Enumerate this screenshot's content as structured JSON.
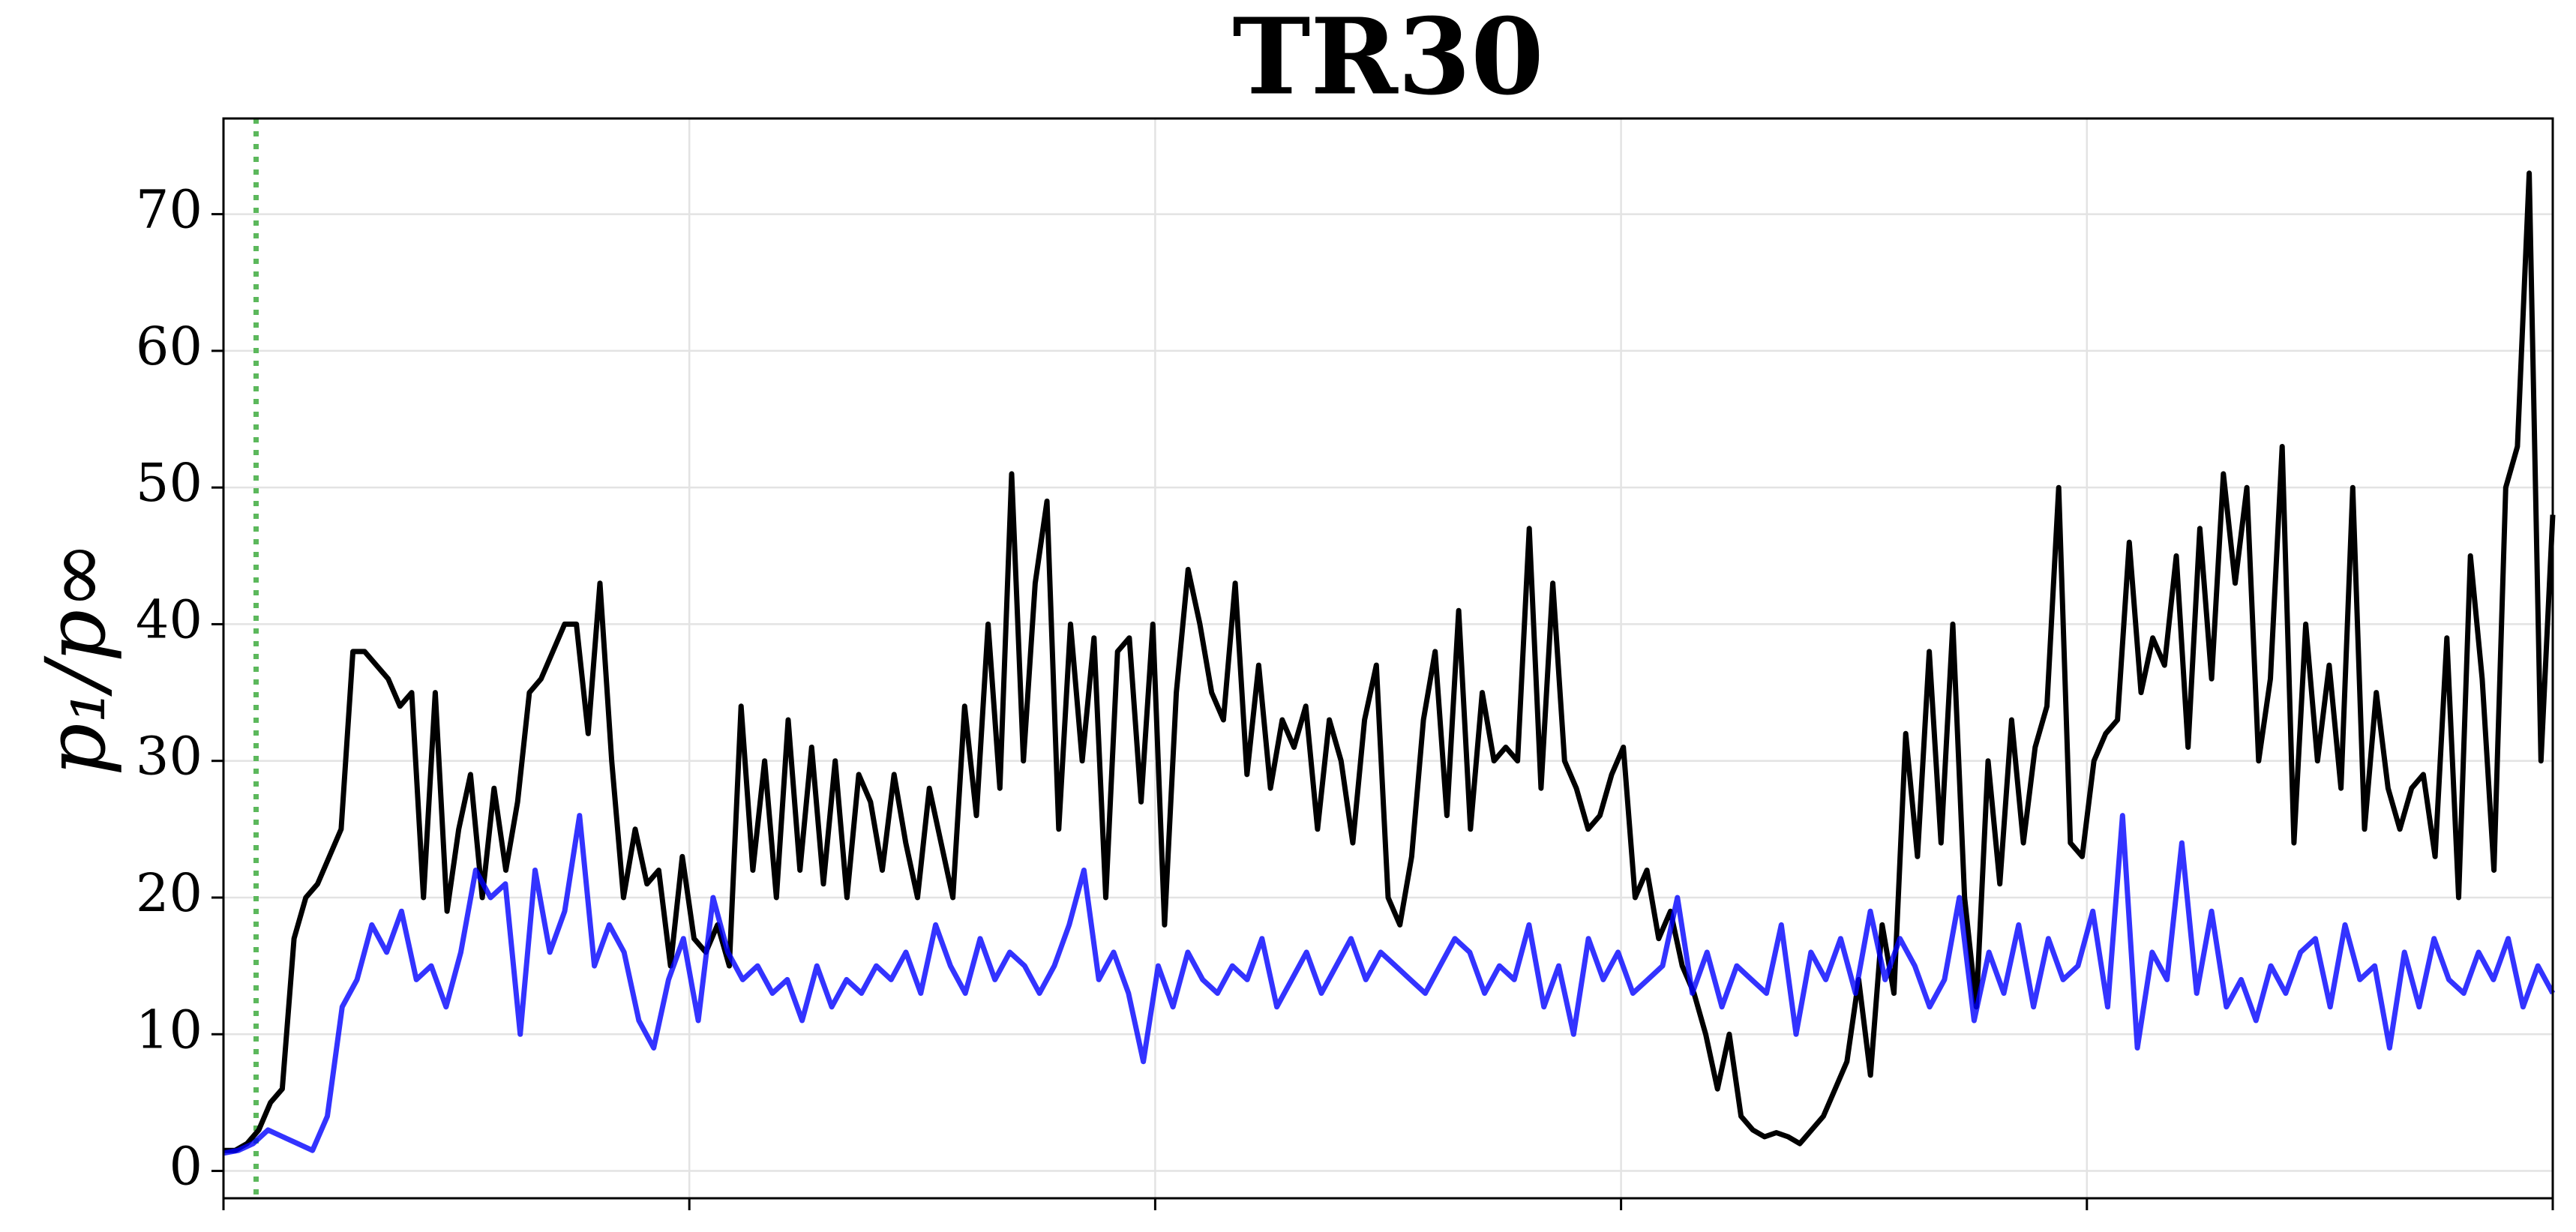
{
  "chart_data": {
    "type": "line",
    "title": "TR30",
    "ylabel": "p₁/p∞",
    "ylim": [
      -2,
      77
    ],
    "yticks": [
      0,
      10,
      20,
      30,
      40,
      50,
      60,
      70
    ],
    "grid": true,
    "series": [
      {
        "color": "#000000",
        "values": [
          1.5,
          1.5,
          2,
          3,
          5,
          6,
          17,
          20,
          21,
          23,
          25,
          38,
          38,
          37,
          36,
          34,
          35,
          20,
          35,
          19,
          25,
          29,
          20,
          28,
          22,
          27,
          35,
          36,
          38,
          40,
          40,
          32,
          43,
          30,
          20,
          25,
          21,
          22,
          15,
          23,
          17,
          16,
          18,
          15,
          34,
          22,
          30,
          20,
          33,
          22,
          31,
          21,
          30,
          20,
          29,
          27,
          22,
          29,
          24,
          20,
          28,
          24,
          20,
          34,
          26,
          40,
          28,
          51,
          30,
          43,
          49,
          25,
          40,
          30,
          39,
          20,
          38,
          39,
          27,
          40,
          18,
          35,
          44,
          40,
          35,
          33,
          43,
          29,
          37,
          28,
          33,
          31,
          34,
          25,
          33,
          30,
          24,
          33,
          37,
          20,
          18,
          23,
          33,
          38,
          26,
          41,
          25,
          35,
          30,
          31,
          30,
          47,
          28,
          43,
          30,
          28,
          25,
          26,
          29,
          31,
          20,
          22,
          17,
          19,
          15,
          13,
          10,
          6,
          10,
          4,
          3,
          2.5,
          2.8,
          2.5,
          2,
          3,
          4,
          6,
          8,
          14,
          7,
          18,
          13,
          32,
          23,
          38,
          24,
          40,
          20,
          12,
          30,
          21,
          33,
          24,
          31,
          34,
          50,
          24,
          23,
          30,
          32,
          33,
          46,
          35,
          39,
          37,
          45,
          31,
          47,
          36,
          51,
          43,
          50,
          30,
          36,
          53,
          24,
          40,
          30,
          37,
          28,
          50,
          25,
          35,
          28,
          25,
          28,
          29,
          23,
          39,
          20,
          45,
          36,
          22,
          50,
          53,
          73,
          30,
          48
        ]
      },
      {
        "color": "#0000ff",
        "values": [
          1.3,
          1.5,
          2,
          3,
          2.5,
          2,
          1.5,
          4,
          12,
          14,
          18,
          16,
          19,
          14,
          15,
          12,
          16,
          22,
          20,
          21,
          10,
          22,
          16,
          19,
          26,
          15,
          18,
          16,
          11,
          9,
          14,
          17,
          11,
          20,
          16,
          14,
          15,
          13,
          14,
          11,
          15,
          12,
          14,
          13,
          15,
          14,
          16,
          13,
          18,
          15,
          13,
          17,
          14,
          16,
          15,
          13,
          15,
          18,
          22,
          14,
          16,
          13,
          8,
          15,
          12,
          16,
          14,
          13,
          15,
          14,
          17,
          12,
          14,
          16,
          13,
          15,
          17,
          14,
          16,
          15,
          14,
          13,
          15,
          17,
          16,
          13,
          15,
          14,
          18,
          12,
          15,
          10,
          17,
          14,
          16,
          13,
          14,
          15,
          20,
          13,
          16,
          12,
          15,
          14,
          13,
          18,
          10,
          16,
          14,
          17,
          13,
          19,
          14,
          17,
          15,
          12,
          14,
          20,
          11,
          16,
          13,
          18,
          12,
          17,
          14,
          15,
          19,
          12,
          26,
          9,
          16,
          14,
          24,
          13,
          19,
          12,
          14,
          11,
          15,
          13,
          16,
          17,
          12,
          18,
          14,
          15,
          9,
          16,
          12,
          17,
          14,
          13,
          16,
          14,
          17,
          12,
          15,
          13
        ]
      }
    ]
  }
}
